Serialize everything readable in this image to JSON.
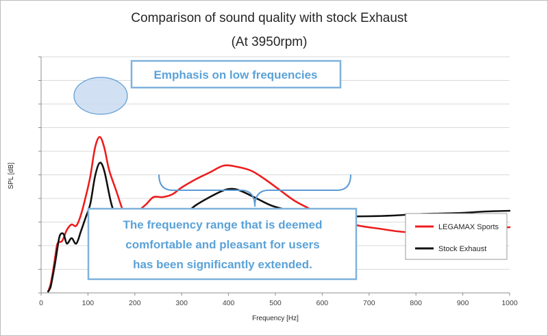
{
  "chart_data": {
    "type": "line",
    "title": "Comparison of sound quality with stock Exhaust",
    "subtitle": "(At 3950rpm)",
    "xlabel": "Frequency [Hz]",
    "ylabel": "SPL [dB]",
    "xlim": [
      0,
      1000
    ],
    "x_ticks": [
      "0",
      "100",
      "200",
      "300",
      "400",
      "500",
      "600",
      "700",
      "800",
      "900",
      "1000"
    ],
    "y_tick_labels_shown": false,
    "grid": "horizontal",
    "legend_position": "right",
    "series": [
      {
        "name": "LEGAMAX Sports",
        "color": "#ee1c1c",
        "x": [
          15,
          20,
          25,
          30,
          35,
          45,
          55,
          65,
          75,
          85,
          95,
          105,
          115,
          125,
          135,
          145,
          160,
          175,
          185,
          195,
          205,
          215,
          225,
          240,
          260,
          280,
          300,
          330,
          360,
          390,
          420,
          450,
          480,
          510,
          540,
          570,
          600,
          640,
          680,
          720,
          760,
          800,
          840,
          880,
          920,
          960,
          1000
        ],
        "y": [
          2,
          12,
          30,
          52,
          72,
          76,
          92,
          100,
          98,
          114,
          140,
          170,
          212,
          228,
          212,
          180,
          150,
          120,
          112,
          113,
          118,
          124,
          130,
          140,
          140,
          144,
          154,
          166,
          176,
          186,
          184,
          178,
          165,
          150,
          135,
          124,
          114,
          104,
          98,
          94,
          90,
          88,
          88,
          90,
          92,
          94,
          96
        ]
      },
      {
        "name": "Stock Exhaust",
        "color": "#111111",
        "x": [
          15,
          20,
          25,
          30,
          35,
          40,
          48,
          55,
          65,
          75,
          85,
          95,
          105,
          115,
          125,
          135,
          150,
          165,
          185,
          205,
          225,
          240,
          260,
          280,
          300,
          330,
          360,
          390,
          410,
          430,
          460,
          490,
          520,
          560,
          600,
          650,
          700,
          750,
          800,
          850,
          900,
          950,
          1000
        ],
        "y": [
          2,
          8,
          25,
          44,
          66,
          84,
          86,
          72,
          80,
          72,
          90,
          110,
          130,
          170,
          190,
          178,
          130,
          104,
          100,
          110,
          117,
          120,
          120,
          113,
          112,
          128,
          140,
          150,
          152,
          148,
          138,
          128,
          122,
          116,
          114,
          112,
          112,
          113,
          115,
          116,
          117,
          119,
          120
        ]
      }
    ],
    "annotations": {
      "low_freq_callout": "Emphasis on low frequencies",
      "range_callout_lines": [
        "The frequency range that is deemed",
        "comfortable and pleasant for users",
        "has been significantly extended."
      ]
    },
    "annotation_colors": {
      "callout_text": "#5aa2d8",
      "callout_border": "#7fb1dd",
      "ellipse_fill": "#c9daf0",
      "ellipse_stroke": "#5b9bd5",
      "bracket": "#5b9bd5"
    }
  }
}
